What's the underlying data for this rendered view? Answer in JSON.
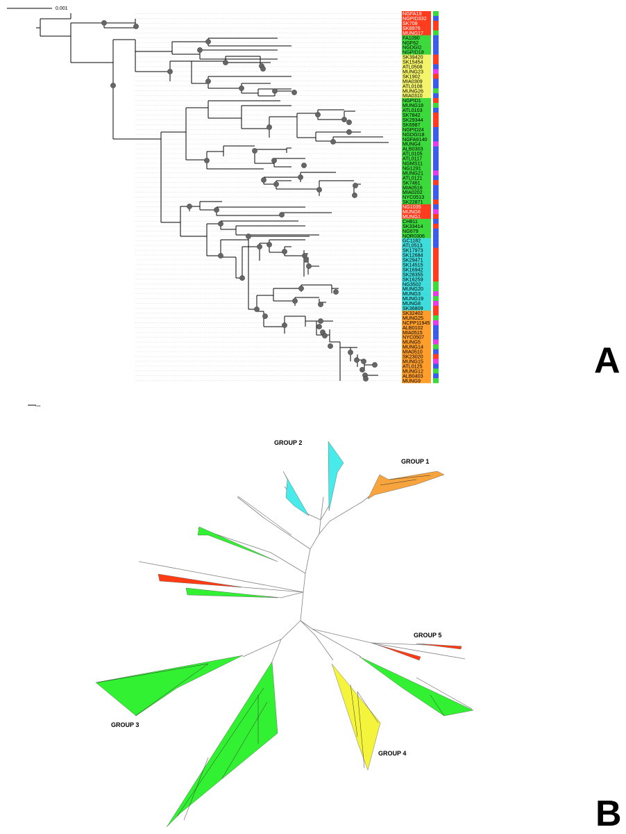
{
  "panel_a": {
    "letter": "A",
    "scale_label": "0.001",
    "colors": {
      "red": "#ff3c1e",
      "green": "#3bd93b",
      "yellow": "#f4f46a",
      "cyan": "#3fdcdc",
      "orange": "#ff9e2a",
      "blue": "#3b5bea",
      "magenta": "#e63ce6",
      "node": "#666666"
    },
    "taxa": [
      {
        "label": "NGFA19",
        "color": "red",
        "strip": "green"
      },
      {
        "label": "NGPID332",
        "color": "red",
        "strip": "blue"
      },
      {
        "label": "SK708",
        "color": "red",
        "strip": "red"
      },
      {
        "label": "SK8976",
        "color": "red",
        "strip": "red"
      },
      {
        "label": "MUNG17",
        "color": "red",
        "strip": "green"
      },
      {
        "label": "FA1090",
        "color": "green",
        "strip": "blue"
      },
      {
        "label": "NGF62",
        "color": "green",
        "strip": "blue"
      },
      {
        "label": "NGDGI2",
        "color": "green",
        "strip": "blue"
      },
      {
        "label": "NGPID18",
        "color": "green",
        "strip": "blue"
      },
      {
        "label": "SK39420",
        "color": "yellow",
        "strip": "red"
      },
      {
        "label": "SK15454",
        "color": "yellow",
        "strip": "red"
      },
      {
        "label": "ATL0508",
        "color": "yellow",
        "strip": "blue"
      },
      {
        "label": "MUNG23",
        "color": "yellow",
        "strip": "magenta"
      },
      {
        "label": "SK1902",
        "color": "yellow",
        "strip": "red"
      },
      {
        "label": "MIA0309",
        "color": "yellow",
        "strip": "blue"
      },
      {
        "label": "ATL0108",
        "color": "yellow",
        "strip": "blue"
      },
      {
        "label": "MUNG26",
        "color": "yellow",
        "strip": "green"
      },
      {
        "label": "MIA0310",
        "color": "yellow",
        "strip": "blue"
      },
      {
        "label": "NGPID1",
        "color": "green",
        "strip": "red"
      },
      {
        "label": "MUNG18",
        "color": "green",
        "strip": "green"
      },
      {
        "label": "ATL0103",
        "color": "green",
        "strip": "blue"
      },
      {
        "label": "SK7842",
        "color": "green",
        "strip": "red"
      },
      {
        "label": "SK29344",
        "color": "green",
        "strip": "red"
      },
      {
        "label": "SK6987",
        "color": "green",
        "strip": "red"
      },
      {
        "label": "NGPID24",
        "color": "green",
        "strip": "blue"
      },
      {
        "label": "NGDGI18",
        "color": "green",
        "strip": "blue"
      },
      {
        "label": "NGFA6140",
        "color": "green",
        "strip": "blue"
      },
      {
        "label": "MUNG4",
        "color": "green",
        "strip": "magenta"
      },
      {
        "label": "ALB0303",
        "color": "green",
        "strip": "blue"
      },
      {
        "label": "ATL0105",
        "color": "green",
        "strip": "blue"
      },
      {
        "label": "ATL0117",
        "color": "green",
        "strip": "blue"
      },
      {
        "label": "NGMS11",
        "color": "green",
        "strip": "blue"
      },
      {
        "label": "NG1291",
        "color": "green",
        "strip": "blue"
      },
      {
        "label": "MUNG21",
        "color": "green",
        "strip": "magenta"
      },
      {
        "label": "ATL0121",
        "color": "green",
        "strip": "blue"
      },
      {
        "label": "SK7461",
        "color": "green",
        "strip": "red"
      },
      {
        "label": "MIA0516",
        "color": "green",
        "strip": "blue"
      },
      {
        "label": "MIA0202",
        "color": "green",
        "strip": "blue"
      },
      {
        "label": "NYC0513",
        "color": "green",
        "strip": "blue"
      },
      {
        "label": "SK22871",
        "color": "green",
        "strip": "red"
      },
      {
        "label": "NG1035",
        "color": "red",
        "strip": "blue"
      },
      {
        "label": "MUNG6",
        "color": "red",
        "strip": "magenta"
      },
      {
        "label": "MUNG1",
        "color": "red",
        "strip": "red"
      },
      {
        "label": "CH811",
        "color": "green",
        "strip": "blue"
      },
      {
        "label": "SK33414",
        "color": "green",
        "strip": "red"
      },
      {
        "label": "NG679",
        "color": "green",
        "strip": "blue"
      },
      {
        "label": "NOR0306",
        "color": "green",
        "strip": "blue"
      },
      {
        "label": "GC1182",
        "color": "cyan",
        "strip": "blue"
      },
      {
        "label": "ATL0513",
        "color": "cyan",
        "strip": "blue"
      },
      {
        "label": "SK17973",
        "color": "cyan",
        "strip": "red"
      },
      {
        "label": "SK12684",
        "color": "cyan",
        "strip": "red"
      },
      {
        "label": "SK29471",
        "color": "cyan",
        "strip": "red"
      },
      {
        "label": "SK14515",
        "color": "cyan",
        "strip": "red"
      },
      {
        "label": "SK16942",
        "color": "cyan",
        "strip": "red"
      },
      {
        "label": "SK28355",
        "color": "cyan",
        "strip": "red"
      },
      {
        "label": "SK16259",
        "color": "cyan",
        "strip": "red"
      },
      {
        "label": "NG3502",
        "color": "cyan",
        "strip": "green"
      },
      {
        "label": "MUNG20",
        "color": "cyan",
        "strip": "green"
      },
      {
        "label": "MUNG3",
        "color": "cyan",
        "strip": "magenta"
      },
      {
        "label": "MUNG19",
        "color": "cyan",
        "strip": "green"
      },
      {
        "label": "MUNG8",
        "color": "cyan",
        "strip": "magenta"
      },
      {
        "label": "SK36809",
        "color": "cyan",
        "strip": "red"
      },
      {
        "label": "SK32402",
        "color": "orange",
        "strip": "red"
      },
      {
        "label": "MUNG25",
        "color": "orange",
        "strip": "green"
      },
      {
        "label": "NCPP11945",
        "color": "orange",
        "strip": "magenta"
      },
      {
        "label": "ALB0102",
        "color": "orange",
        "strip": "blue"
      },
      {
        "label": "MIA0515",
        "color": "orange",
        "strip": "blue"
      },
      {
        "label": "NYC0507",
        "color": "orange",
        "strip": "blue"
      },
      {
        "label": "MUNG5",
        "color": "orange",
        "strip": "magenta"
      },
      {
        "label": "MUNG14",
        "color": "orange",
        "strip": "green"
      },
      {
        "label": "MIA0510",
        "color": "orange",
        "strip": "blue"
      },
      {
        "label": "SK23020",
        "color": "orange",
        "strip": "red"
      },
      {
        "label": "MUNG15",
        "color": "orange",
        "strip": "magenta"
      },
      {
        "label": "ATL0125",
        "color": "orange",
        "strip": "blue"
      },
      {
        "label": "MUNG12",
        "color": "orange",
        "strip": "green"
      },
      {
        "label": "ALB0403",
        "color": "orange",
        "strip": "blue"
      },
      {
        "label": "MUNG9",
        "color": "orange",
        "strip": "green"
      }
    ]
  },
  "panel_b": {
    "letter": "B",
    "scale_label": "0.001",
    "groups": [
      {
        "label": "GROUP 1",
        "color": "#f7a43c"
      },
      {
        "label": "GROUP 2",
        "color": "#48eaea"
      },
      {
        "label": "GROUP 3",
        "color": "#32f032"
      },
      {
        "label": "GROUP 4",
        "color": "#f4f43c"
      },
      {
        "label": "GROUP 5",
        "color": "#ff3c14"
      }
    ]
  }
}
